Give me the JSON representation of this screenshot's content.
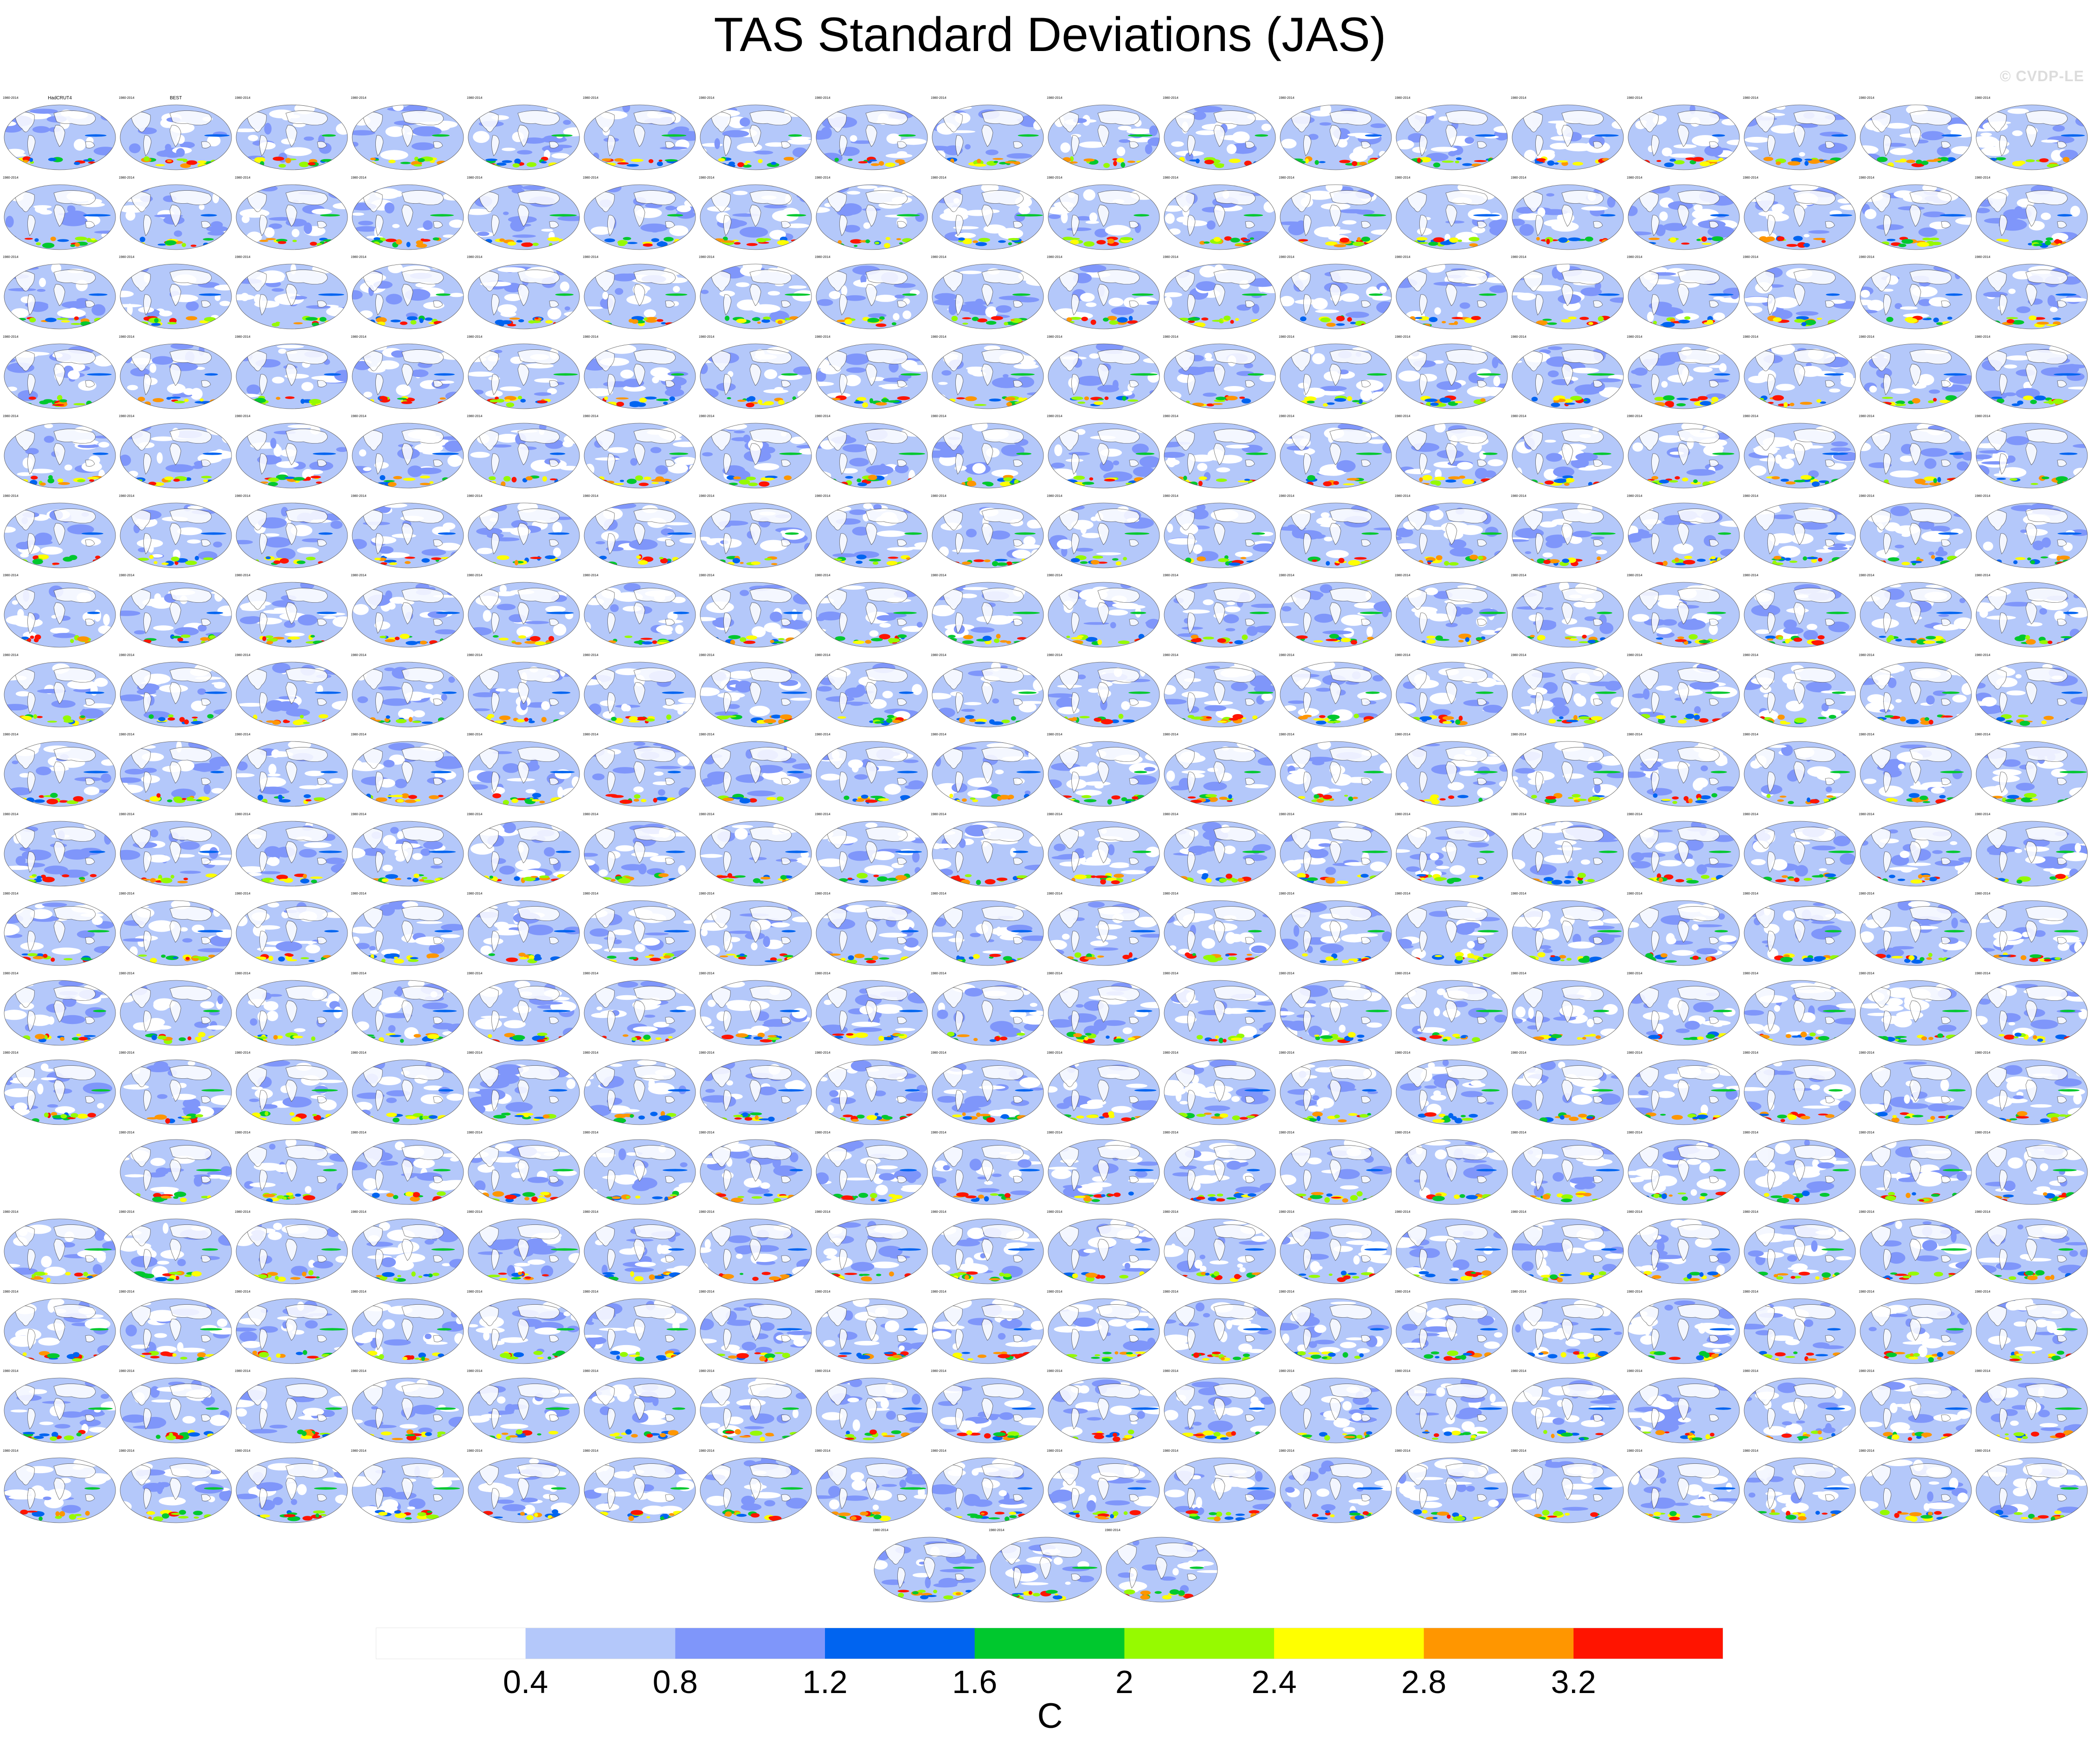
{
  "title": "TAS Standard Deviations (JAS)",
  "watermark": "© CVDP-LE",
  "chart_data": {
    "type": "heatmap",
    "title": "TAS Standard Deviations (JAS)",
    "description_level": "grid of global maps",
    "grid": {
      "rows": 19,
      "columns": 18,
      "row_counts": [
        18,
        18,
        18,
        18,
        18,
        18,
        18,
        18,
        18,
        18,
        18,
        18,
        18,
        17,
        18,
        18,
        18,
        18,
        3
      ],
      "row_offsets": [
        0,
        0,
        0,
        0,
        0,
        0,
        0,
        0,
        0,
        0,
        0,
        0,
        0,
        1,
        0,
        0,
        0,
        0,
        7.5
      ]
    },
    "panel_years": "1980-2014",
    "panel_titles": {
      "0": "HadCRUT4",
      "1": "BEST"
    },
    "model_groups": [
      {
        "name": "CanESM5",
        "color": "#3a78d8",
        "rows": [
          0,
          1,
          2,
          3
        ]
      },
      {
        "name": "CESM2-LENS",
        "color": "#7fb0e8",
        "rows": [
          4,
          5,
          6,
          7,
          8,
          9
        ]
      },
      {
        "name": "CNRM-CM6-1",
        "color": "#6aa0e0",
        "rows": [
          9,
          10,
          11
        ]
      },
      {
        "name": "GISS-E2-1-G",
        "color": "#5c5c80",
        "rows": [
          11,
          12,
          13
        ]
      },
      {
        "name": "IPSL-CM6A-LR",
        "color": "#8a7abf",
        "rows": [
          14,
          15,
          16
        ]
      },
      {
        "name": "MIROC6",
        "color": "#e8c88a",
        "rows": [
          16,
          17,
          18
        ]
      }
    ],
    "colorbar": {
      "levels": [
        0.4,
        0.8,
        1.2,
        1.6,
        2,
        2.4,
        2.8,
        3.2
      ],
      "tick_labels": [
        "0.4",
        "0.8",
        "1.2",
        "1.6",
        "2",
        "2.4",
        "2.8",
        "3.2"
      ],
      "colors": [
        "#ffffff",
        "#b4c8fa",
        "#7f96fa",
        "#0064f0",
        "#00c82e",
        "#96fa00",
        "#ffff00",
        "#ff9600",
        "#ff1400"
      ],
      "unit": "C"
    }
  },
  "colors": {
    "map_background": "#ffffff",
    "land_outline": "#444444",
    "ocean_light": "#b4c8fa",
    "ocean_mid": "#7f96fa"
  }
}
